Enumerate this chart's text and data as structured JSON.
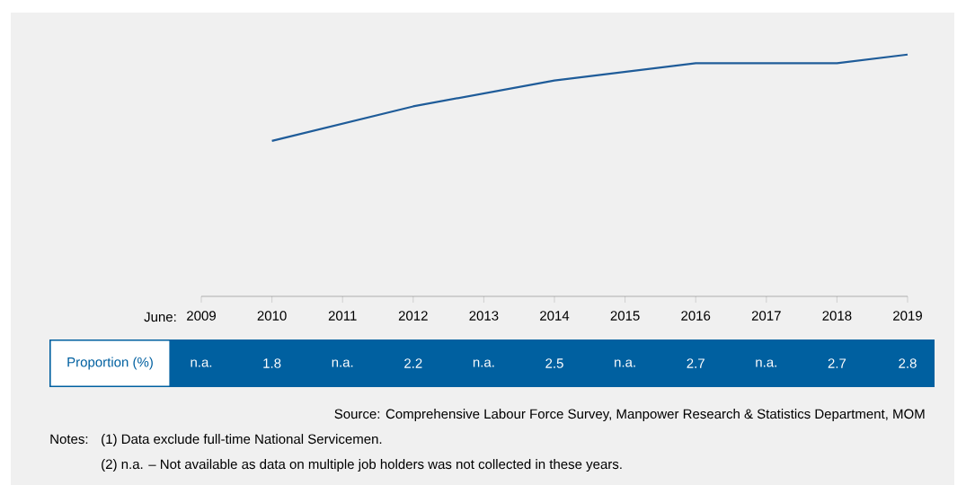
{
  "chart_data": {
    "type": "line",
    "categories": [
      "2009",
      "2010",
      "2011",
      "2012",
      "2013",
      "2014",
      "2015",
      "2016",
      "2017",
      "2018",
      "2019"
    ],
    "values": [
      null,
      1.8,
      null,
      2.2,
      null,
      2.5,
      null,
      2.7,
      null,
      2.7,
      2.8
    ],
    "value_labels": [
      "n.a.",
      "1.8",
      "n.a.",
      "2.2",
      "n.a.",
      "2.5",
      "n.a.",
      "2.7",
      "n.a.",
      "2.7",
      "2.8"
    ],
    "color": "#1f5c99",
    "line_style": "solid",
    "grid": false,
    "xlabel": "June:",
    "ylabel": "Proportion (%)",
    "annotations": [
      "Source: Comprehensive Labour Force Survey, Manpower Research & Statistics Department, MOM",
      "Notes:",
      "(1)  Data exclude full-time National Servicemen.",
      "(2)  n.a. – Not available as data on multiple job holders was not collected in these years."
    ]
  }
}
